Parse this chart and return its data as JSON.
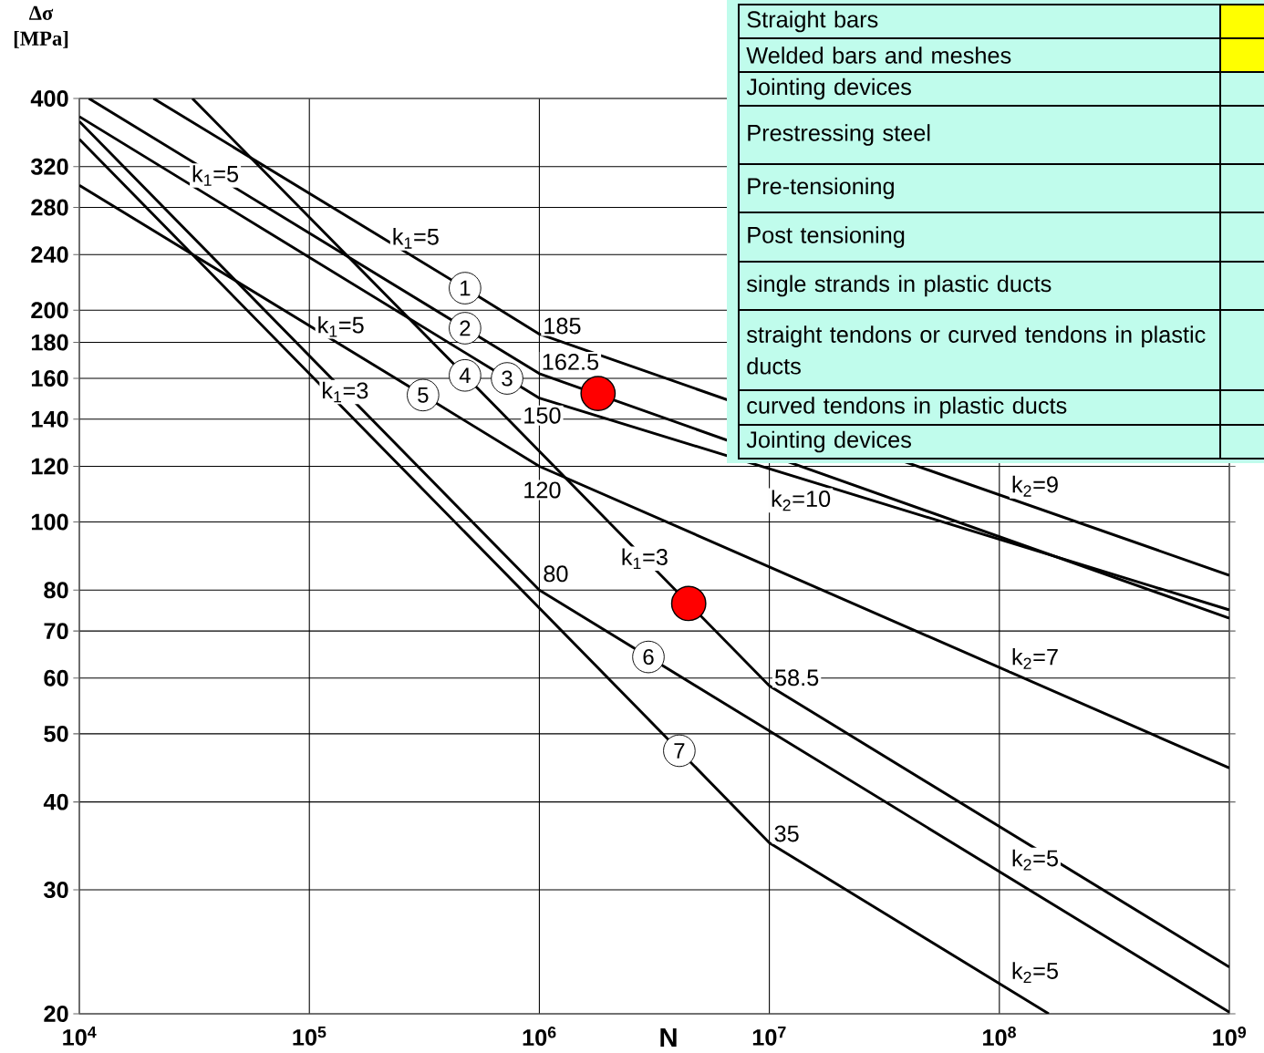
{
  "chart_data": {
    "type": "line",
    "xlabel": "N",
    "ylabel": "Δσ [MPa]",
    "log": "xy",
    "grid": true,
    "xlim": [
      10000,
      1000000000
    ],
    "ylim": [
      20,
      400
    ],
    "xticks": [
      {
        "value": 10000,
        "label": "10$^{4}$"
      },
      {
        "value": 100000,
        "label": "10$^{5}$"
      },
      {
        "value": 1000000,
        "label": "10$^{6}$"
      },
      {
        "value": 10000000,
        "label": "10$^{7}$"
      },
      {
        "value": 100000000,
        "label": "10$^{8}$"
      },
      {
        "value": 1000000000,
        "label": "10$^{9}$"
      }
    ],
    "yticks": [
      20,
      30,
      40,
      50,
      60,
      70,
      80,
      100,
      120,
      140,
      160,
      180,
      200,
      240,
      280,
      320,
      400
    ],
    "series": [
      {
        "color": "#000000",
        "x": [
          21000,
          475000,
          1000000,
          1000000000
        ],
        "values": [
          400,
          215,
          185,
          84
        ]
      },
      {
        "color": "#000000",
        "x": [
          11000,
          475000,
          1000000,
          1000000000
        ],
        "values": [
          400,
          188.6,
          162.5,
          73
        ]
      },
      {
        "color": "#000000",
        "x": [
          10000,
          724000,
          1000000,
          1000000000
        ],
        "values": [
          377,
          160,
          150,
          75
        ]
      },
      {
        "color": "#000000",
        "x": [
          31000,
          475000,
          10000000,
          1000000000
        ],
        "values": [
          400,
          161.6,
          58.5,
          23.3
        ]
      },
      {
        "color": "#000000",
        "x": [
          10000,
          312000,
          1000000,
          1000000000
        ],
        "values": [
          301,
          151.5,
          120,
          44.7
        ]
      },
      {
        "color": "#000000",
        "x": [
          10000,
          1000000,
          2980000,
          1000000000
        ],
        "values": [
          371,
          80,
          64.3,
          20.1
        ]
      },
      {
        "color": "#000000",
        "x": [
          10000,
          4060000,
          10000000,
          164000000
        ],
        "values": [
          350,
          47.3,
          35,
          20
        ]
      },
      {
        "type": "scatter",
        "marker": "circle",
        "color": "#ff0000",
        "x": [
          1800000,
          4460000
        ],
        "values": [
          152.3,
          76.6
        ]
      }
    ],
    "annotations": [
      {
        "text": "k$_{1}$=5",
        "x": 39000,
        "y": 310.9
      },
      {
        "text": "k$_{1}$=5",
        "x": 290000,
        "y": 237
      },
      {
        "text": "k$_{1}$=5",
        "x": 137000,
        "y": 178.6
      },
      {
        "text": "k$_{1}$=3",
        "x": 143000,
        "y": 153
      },
      {
        "text": "k$_{1}$=3",
        "x": 2870000,
        "y": 88.7
      },
      {
        "text": "k$_{2}$=9",
        "x": 143000000,
        "y": 105.3
      },
      {
        "text": "k$_{2}$=10",
        "x": 13700000,
        "y": 115.3
      },
      {
        "text": "k$_{2}$=7",
        "x": 143000000,
        "y": 59
      },
      {
        "text": "k$_{2}$=5",
        "x": 143000000,
        "y": 34.3
      },
      {
        "text": "k$_{2}$=5",
        "x": 143000000,
        "y": 20.5
      },
      {
        "text": "185",
        "x": 1000000,
        "y": 185
      },
      {
        "text": "162.5",
        "x": 1000000,
        "y": 162.5
      },
      {
        "text": "150",
        "x": 1000000,
        "y": 150
      },
      {
        "text": "120",
        "x": 1000000,
        "y": 120
      },
      {
        "text": "80",
        "x": 1000000,
        "y": 80
      },
      {
        "text": "58.5",
        "x": 10000000,
        "y": 58.5
      },
      {
        "text": "35",
        "x": 10000000,
        "y": 35
      },
      {
        "text": "1",
        "x": 475000,
        "y": 215
      },
      {
        "text": "2",
        "x": 475000,
        "y": 188.6
      },
      {
        "text": "3",
        "x": 724000,
        "y": 160
      },
      {
        "text": "4",
        "x": 475000,
        "y": 161.6
      },
      {
        "text": "5",
        "x": 312000,
        "y": 151.5
      },
      {
        "text": "6",
        "x": 2980000,
        "y": 64.3
      },
      {
        "text": "7",
        "x": 4060000,
        "y": 47.3
      },
      "Straight bars",
      "Welded bars and meshes",
      "Jointing devices",
      "Prestressing steel",
      "Pre-tensioning",
      "Post tensioning",
      "single strands in plastic ducts",
      "straight tendons or curved tendons in plastic ducts",
      "curved tendons in plastic ducts",
      "Jointing devices"
    ]
  }
}
